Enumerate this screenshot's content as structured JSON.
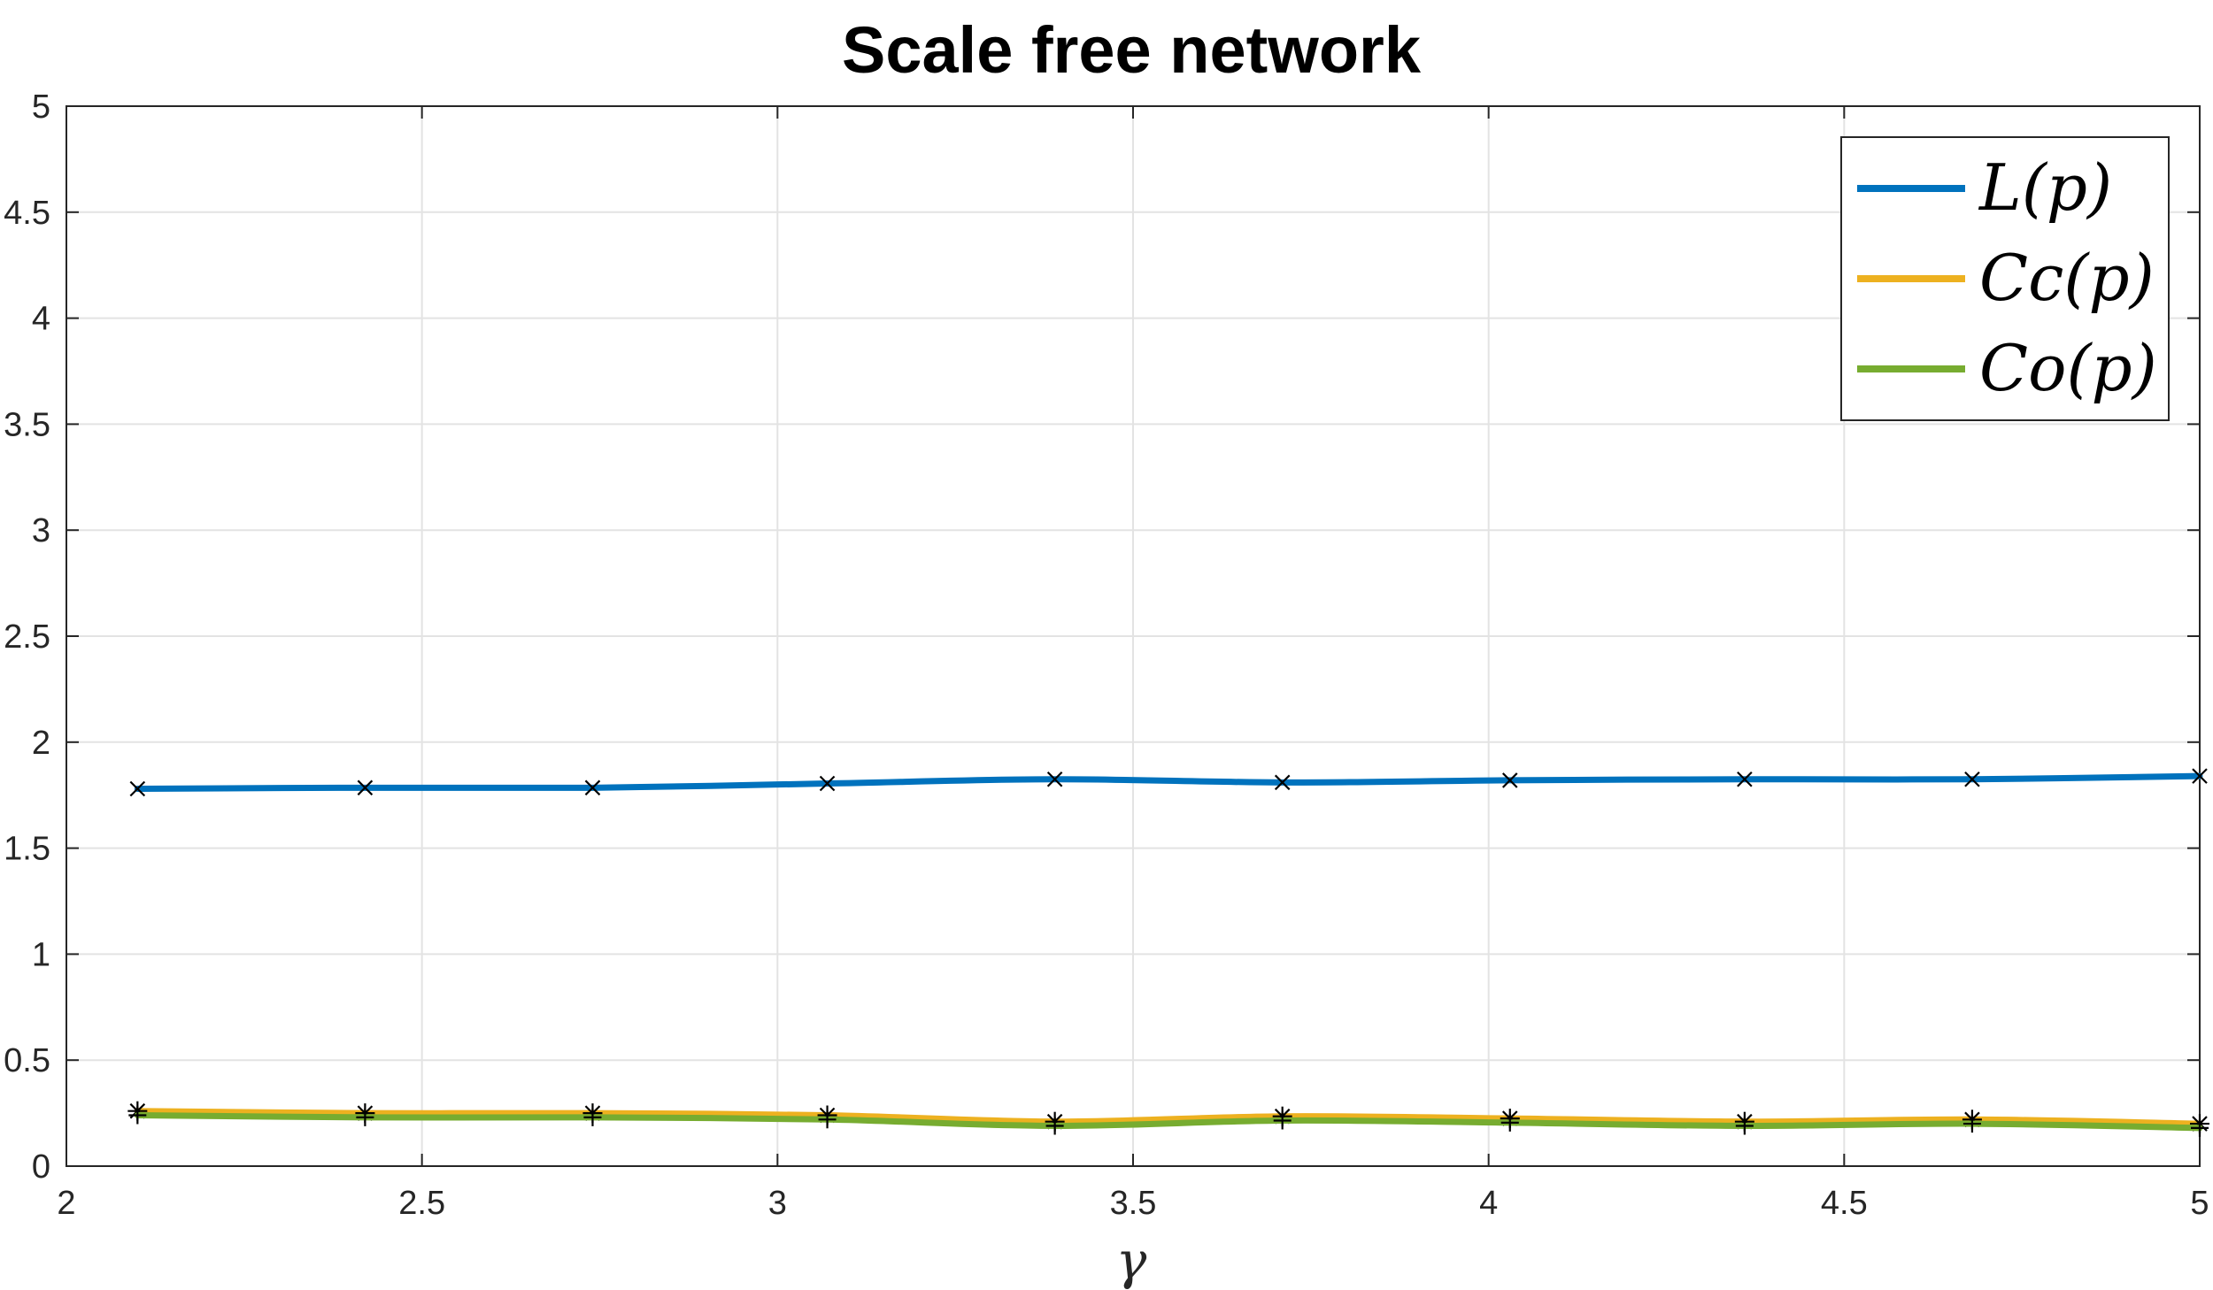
{
  "chart_data": {
    "type": "line",
    "title": "Scale free network",
    "xlabel": "γ",
    "ylabel": "",
    "xlim": [
      2,
      5
    ],
    "ylim": [
      0,
      5
    ],
    "xticks": [
      2,
      2.5,
      3,
      3.5,
      4,
      4.5,
      5
    ],
    "xtick_labels": [
      "2",
      "2.5",
      "3",
      "3.5",
      "4",
      "4.5",
      "5"
    ],
    "yticks": [
      0,
      0.5,
      1,
      1.5,
      2,
      2.5,
      3,
      3.5,
      4,
      4.5,
      5
    ],
    "ytick_labels": [
      "0",
      "0.5",
      "1",
      "1.5",
      "2",
      "2.5",
      "3",
      "3.5",
      "4",
      "4.5",
      "5"
    ],
    "grid": true,
    "legend_position": "top-right",
    "x": [
      2.1,
      2.42,
      2.74,
      3.07,
      3.39,
      3.71,
      4.03,
      4.36,
      4.68,
      5.0
    ],
    "series": [
      {
        "name": "L(p)",
        "color": "#0072BD",
        "marker": "x",
        "values": [
          1.78,
          1.785,
          1.785,
          1.805,
          1.825,
          1.81,
          1.82,
          1.825,
          1.825,
          1.84
        ]
      },
      {
        "name": "Cc(p)",
        "color": "#EDB120",
        "marker": "asterisk",
        "values": [
          0.26,
          0.25,
          0.25,
          0.24,
          0.21,
          0.235,
          0.225,
          0.21,
          0.22,
          0.2
        ]
      },
      {
        "name": "Co(p)",
        "color": "#77AC30",
        "marker": "plus",
        "values": [
          0.24,
          0.23,
          0.23,
          0.22,
          0.19,
          0.215,
          0.205,
          0.19,
          0.2,
          0.18
        ]
      }
    ]
  }
}
